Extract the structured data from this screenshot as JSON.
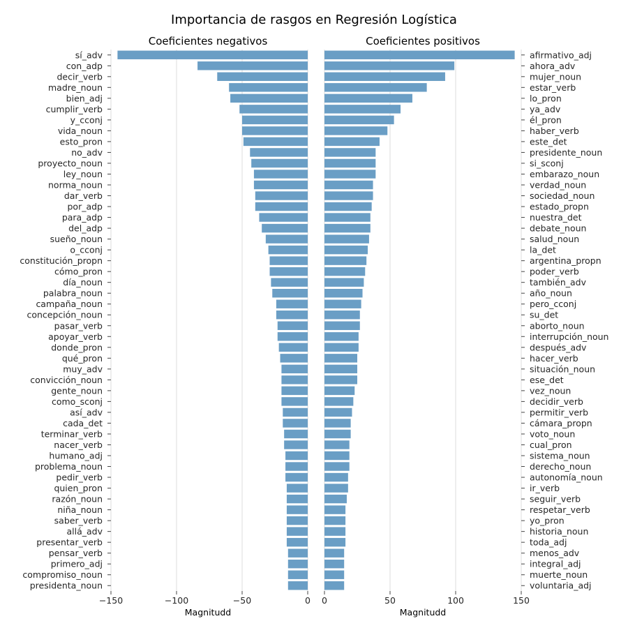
{
  "chart_data": {
    "type": "bar",
    "orientation": "horizontal",
    "title": "Importancia de rasgos en Regresión Logística",
    "bar_color": "#6a9ec5",
    "grid": true,
    "panels": [
      {
        "title": "Coeficientes negativos",
        "xlabel": "Magnitudd",
        "xlim": [
          -150,
          0
        ],
        "xticks": [
          -150,
          -100,
          -50,
          0
        ],
        "xtick_labels": [
          "−150",
          "−100",
          "−50",
          "0"
        ],
        "label_side": "left",
        "categories": [
          "sí_adv",
          "con_adp",
          "decir_verb",
          "madre_noun",
          "bien_adj",
          "cumplir_verb",
          "y_cconj",
          "vida_noun",
          "esto_pron",
          "no_adv",
          "proyecto_noun",
          "ley_noun",
          "norma_noun",
          "dar_verb",
          "por_adp",
          "para_adp",
          "del_adp",
          "sueño_noun",
          "o_cconj",
          "constitución_propn",
          "cómo_pron",
          "día_noun",
          "palabra_noun",
          "campaña_noun",
          "concepción_noun",
          "pasar_verb",
          "apoyar_verb",
          "donde_pron",
          "qué_pron",
          "muy_adv",
          "convicción_noun",
          "gente_noun",
          "como_sconj",
          "así_adv",
          "cada_det",
          "terminar_verb",
          "nacer_verb",
          "humano_adj",
          "problema_noun",
          "pedir_verb",
          "quien_pron",
          "razón_noun",
          "niña_noun",
          "saber_verb",
          "allá_adv",
          "presentar_verb",
          "pensar_verb",
          "primero_adj",
          "compromiso_noun",
          "presidenta_noun"
        ],
        "values": [
          -145,
          -84,
          -69,
          -60,
          -59,
          -52,
          -50,
          -50,
          -49,
          -44,
          -43,
          -41,
          -41,
          -40,
          -40,
          -37,
          -35,
          -32,
          -30,
          -29,
          -29,
          -28,
          -27,
          -24,
          -24,
          -23,
          -23,
          -22,
          -21,
          -20,
          -20,
          -20,
          -20,
          -19,
          -19,
          -18,
          -18,
          -17,
          -17,
          -17,
          -16,
          -16,
          -16,
          -16,
          -16,
          -16,
          -15,
          -15,
          -15,
          -15
        ]
      },
      {
        "title": "Coeficientes positivos",
        "xlabel": "Magnitudd",
        "xlim": [
          0,
          150
        ],
        "xticks": [
          0,
          50,
          100,
          150
        ],
        "xtick_labels": [
          "0",
          "50",
          "100",
          "150"
        ],
        "label_side": "right",
        "categories": [
          "afirmativo_adj",
          "ahora_adv",
          "mujer_noun",
          "estar_verb",
          "lo_pron",
          "ya_adv",
          "él_pron",
          "haber_verb",
          "este_det",
          "presidente_noun",
          "si_sconj",
          "embarazo_noun",
          "verdad_noun",
          "sociedad_noun",
          "estado_propn",
          "nuestra_det",
          "debate_noun",
          "salud_noun",
          "la_det",
          "argentina_propn",
          "poder_verb",
          "también_adv",
          "año_noun",
          "pero_cconj",
          "su_det",
          "aborto_noun",
          "interrupción_noun",
          "después_adv",
          "hacer_verb",
          "situación_noun",
          "ese_det",
          "vez_noun",
          "decidir_verb",
          "permitir_verb",
          "cámara_propn",
          "voto_noun",
          "cual_pron",
          "sistema_noun",
          "derecho_noun",
          "autonomía_noun",
          "ir_verb",
          "seguir_verb",
          "respetar_verb",
          "yo_pron",
          "historia_noun",
          "toda_adj",
          "menos_adv",
          "integral_adj",
          "muerte_noun",
          "voluntaria_adj"
        ],
        "values": [
          145,
          99,
          92,
          78,
          67,
          58,
          53,
          48,
          42,
          39,
          39,
          39,
          37,
          37,
          36,
          35,
          35,
          34,
          33,
          32,
          31,
          30,
          29,
          28,
          27,
          27,
          26,
          26,
          25,
          25,
          25,
          23,
          22,
          21,
          20,
          20,
          19,
          19,
          19,
          18,
          18,
          17,
          16,
          16,
          16,
          16,
          15,
          15,
          15,
          15
        ]
      }
    ]
  }
}
